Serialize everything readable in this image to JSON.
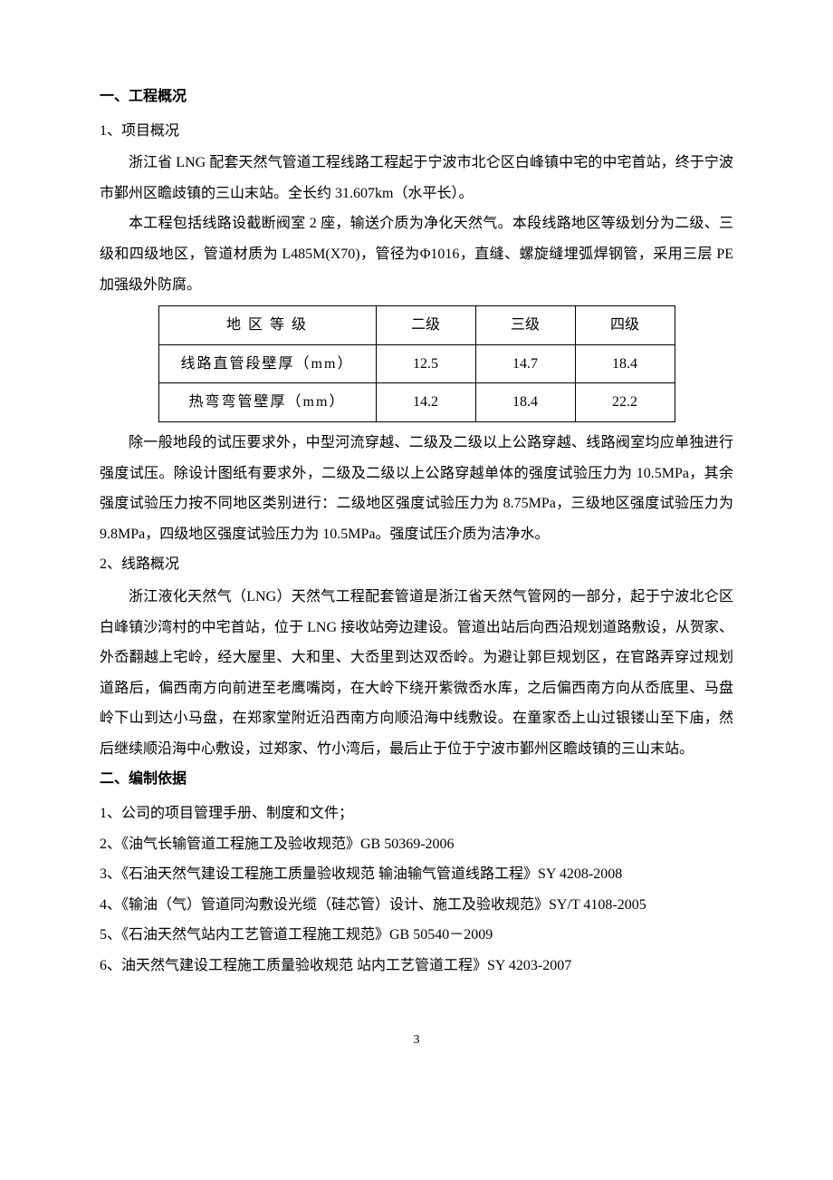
{
  "section1": {
    "heading": "一、工程概况",
    "sub1": {
      "label": "1、项目概况",
      "p1": "浙江省 LNG 配套天然气管道工程线路工程起于宁波市北仑区白峰镇中宅的中宅首站，终于宁波市鄞州区瞻歧镇的三山末站。全长约 31.607km（水平长）。",
      "p2": "本工程包括线路设截断阀室 2 座，输送介质为净化天然气。本段线路地区等级划分为二级、三级和四级地区，管道材质为 L485M(X70)，管径为Φ1016，直缝、螺旋缝埋弧焊钢管，采用三层 PE 加强级外防腐。",
      "table": {
        "rows": [
          {
            "label": "地 区 等 级",
            "c1": "二级",
            "c2": "三级",
            "c3": "四级"
          },
          {
            "label": "线路直管段壁厚（mm）",
            "c1": "12.5",
            "c2": "14.7",
            "c3": "18.4"
          },
          {
            "label": "热弯弯管壁厚（mm）",
            "c1": "14.2",
            "c2": "18.4",
            "c3": "22.2"
          }
        ]
      },
      "p3": "除一般地段的试压要求外，中型河流穿越、二级及二级以上公路穿越、线路阀室均应单独进行强度试压。除设计图纸有要求外，二级及二级以上公路穿越单体的强度试验压力为 10.5MPa，其余强度试验压力按不同地区类别进行：二级地区强度试验压力为 8.75MPa，三级地区强度试验压力为 9.8MPa，四级地区强度试验压力为 10.5MPa。强度试压介质为洁净水。"
    },
    "sub2": {
      "label": "2、线路概况",
      "p1": "浙江液化天然气（LNG）天然气工程配套管道是浙江省天然气管网的一部分，起于宁波北仑区白峰镇沙湾村的中宅首站，位于 LNG 接收站旁边建设。管道出站后向西沿规划道路敷设，从贺家、外岙翻越上宅岭，经大屋里、大和里、大岙里到达双岙岭。为避让郭巨规划区，在官路弄穿过规划道路后，偏西南方向前进至老鹰嘴岗，在大岭下绕开紫微岙水库，之后偏西南方向从岙底里、马盘岭下山到达小马盘，在郑家堂附近沿西南方向顺沿海中线敷设。在童家岙上山过银镂山至下庙，然后继续顺沿海中心敷设，过郑家、竹小湾后，最后止于位于宁波市鄞州区瞻歧镇的三山末站。"
    }
  },
  "section2": {
    "heading": "二、编制依据",
    "items": [
      "1、公司的项目管理手册、制度和文件；",
      "2、《油气长输管道工程施工及验收规范》GB 50369-2006",
      "3、《石油天然气建设工程施工质量验收规范 输油输气管道线路工程》SY 4208-2008",
      "4、《输油（气）管道同沟敷设光缆（硅芯管）设计、施工及验收规范》SY/T 4108-2005",
      "5、《石油天然气站内工艺管道工程施工规范》GB 50540－2009",
      "6、油天然气建设工程施工质量验收规范  站内工艺管道工程》SY 4203-2007"
    ]
  },
  "pageNumber": "3"
}
